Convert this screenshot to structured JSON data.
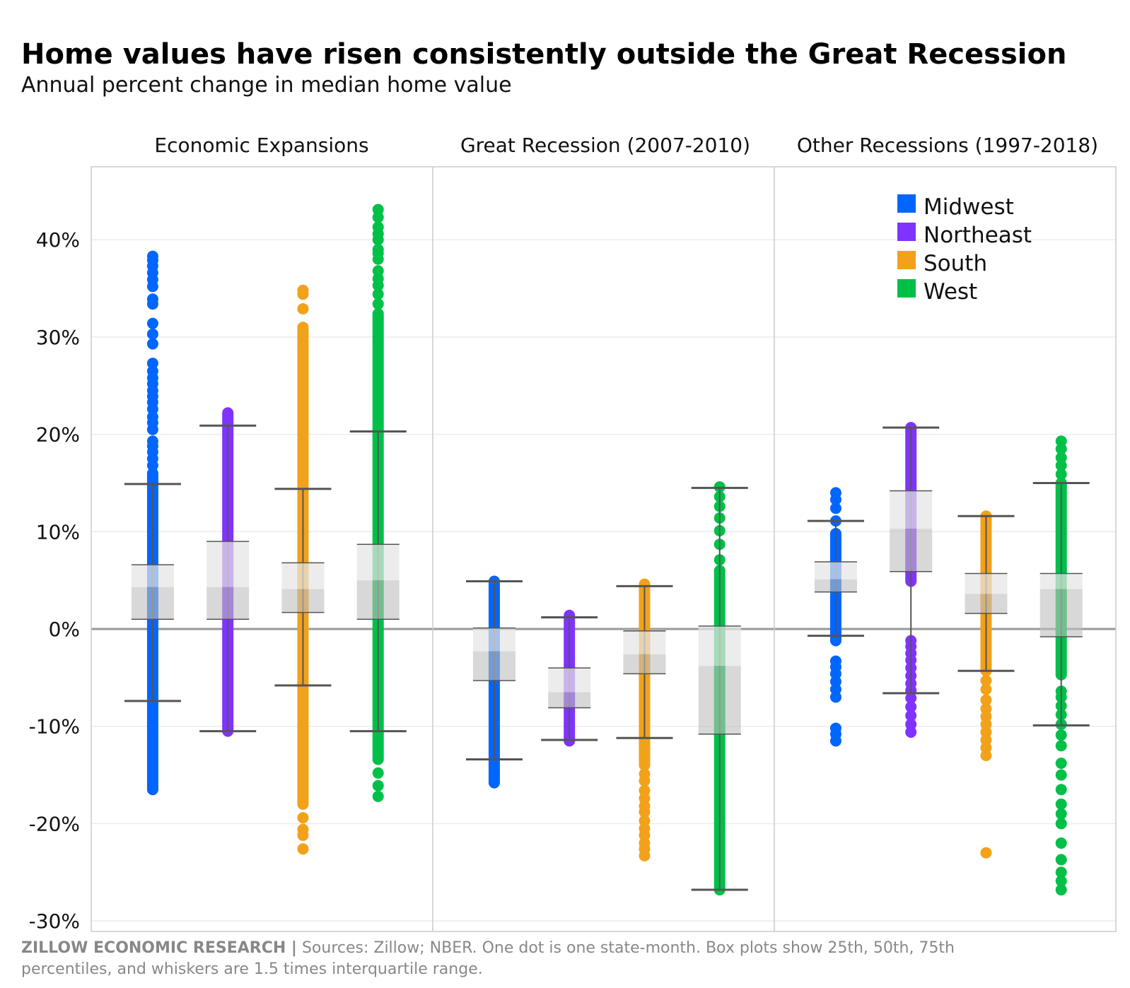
{
  "chart_data": {
    "type": "box-strip",
    "title": "Home values have risen consistently outside the Great Recession",
    "subtitle": "Annual percent change in median home value",
    "ylim": [
      -31,
      48
    ],
    "yticks": [
      -30,
      -20,
      -10,
      0,
      10,
      20,
      30,
      40
    ],
    "ytick_labels": [
      "-30%",
      "-20%",
      "-10%",
      "0%",
      "10%",
      "20%",
      "30%",
      "40%"
    ],
    "grid": true,
    "legend_position": "top-right",
    "series": [
      {
        "name": "Midwest",
        "color": "#0066ff"
      },
      {
        "name": "Northeast",
        "color": "#8033ff"
      },
      {
        "name": "South",
        "color": "#f2a11a"
      },
      {
        "name": "West",
        "color": "#00c048"
      }
    ],
    "panels": [
      {
        "label": "Economic Expansions",
        "groups": [
          {
            "series": "Midwest",
            "q1": 1.0,
            "median": 4.3,
            "q3": 6.6,
            "whisker_low": -7.4,
            "whisker_high": 14.9,
            "dense_range": [
              -16.5,
              16.0
            ],
            "outliers": [
              16.8,
              17.5,
              18.2,
              18.8,
              19.3,
              20.5,
              21.2,
              21.8,
              22.6,
              23.3,
              23.9,
              24.5,
              25.2,
              25.8,
              26.5,
              27.3,
              29.3,
              30.3,
              31.4,
              33.4,
              33.9,
              35.2,
              35.9,
              36.6,
              37.3,
              37.9,
              38.3
            ]
          },
          {
            "series": "Northeast",
            "q1": 1.0,
            "median": 4.3,
            "q3": 9.0,
            "whisker_low": -10.5,
            "whisker_high": 20.9,
            "dense_range": [
              -10.5,
              22.2
            ],
            "outliers": []
          },
          {
            "series": "South",
            "q1": 1.7,
            "median": 4.1,
            "q3": 6.8,
            "whisker_low": -5.8,
            "whisker_high": 14.4,
            "dense_range": [
              -18.0,
              31.0
            ],
            "outliers": [
              -22.6,
              -21.2,
              -20.6,
              -19.4,
              32.9,
              34.4,
              34.8
            ]
          },
          {
            "series": "West",
            "q1": 1.0,
            "median": 5.0,
            "q3": 8.7,
            "whisker_low": -10.5,
            "whisker_high": 20.3,
            "dense_range": [
              -13.4,
              32.4
            ],
            "outliers": [
              -17.2,
              -16.1,
              -14.8,
              33.4,
              34.4,
              35.3,
              36.0,
              36.8,
              38.0,
              38.6,
              39.0,
              40.0,
              40.6,
              41.3,
              42.3,
              43.1
            ]
          }
        ]
      },
      {
        "label": "Great Recession (2007-2010)",
        "groups": [
          {
            "series": "Midwest",
            "q1": -5.3,
            "median": -2.3,
            "q3": 0.1,
            "whisker_low": -13.4,
            "whisker_high": 4.9,
            "dense_range": [
              -15.8,
              4.9
            ],
            "outliers": []
          },
          {
            "series": "Northeast",
            "q1": -8.1,
            "median": -6.5,
            "q3": -4.0,
            "whisker_low": -11.4,
            "whisker_high": 1.2,
            "dense_range": [
              -11.5,
              1.4
            ],
            "outliers": []
          },
          {
            "series": "South",
            "q1": -4.6,
            "median": -2.6,
            "q3": -0.2,
            "whisker_low": -11.2,
            "whisker_high": 4.4,
            "dense_range": [
              -14.0,
              4.6
            ],
            "outliers": [
              -23.3,
              -22.6,
              -22.0,
              -21.2,
              -20.5,
              -19.7,
              -18.8,
              -18.2,
              -17.4,
              -16.6,
              -15.6,
              -14.9
            ]
          },
          {
            "series": "West",
            "q1": -10.8,
            "median": -3.8,
            "q3": 0.3,
            "whisker_low": -26.8,
            "whisker_high": 14.5,
            "dense_range": [
              -26.8,
              6.0
            ],
            "outliers": [
              7.1,
              8.7,
              10.1,
              11.4,
              12.6,
              13.6,
              14.6
            ]
          }
        ]
      },
      {
        "label": "Other Recessions (1997-2018)",
        "groups": [
          {
            "series": "Midwest",
            "q1": 3.8,
            "median": 5.1,
            "q3": 6.9,
            "whisker_low": -0.7,
            "whisker_high": 11.1,
            "dense_range": [
              -1.2,
              9.8
            ],
            "outliers": [
              -11.5,
              -10.8,
              -10.2,
              -7.0,
              -6.2,
              -5.4,
              -4.6,
              -3.9,
              -3.3,
              11.1,
              12.4,
              13.3,
              14.0
            ]
          },
          {
            "series": "Northeast",
            "q1": 5.9,
            "median": 10.3,
            "q3": 14.2,
            "whisker_low": -6.6,
            "whisker_high": 20.7,
            "dense_range": [
              4.9,
              20.7
            ],
            "outliers": [
              -10.6,
              -9.8,
              -8.9,
              -8.0,
              -7.1,
              -6.3,
              -5.6,
              -4.8,
              -4.0,
              -3.2,
              -2.5,
              -1.8,
              -1.2
            ]
          },
          {
            "series": "South",
            "q1": 1.6,
            "median": 3.6,
            "q3": 5.7,
            "whisker_low": -4.3,
            "whisker_high": 11.6,
            "dense_range": [
              -4.3,
              11.6
            ],
            "outliers": [
              -23.0,
              -13.0,
              -12.2,
              -11.4,
              -10.6,
              -9.8,
              -9.0,
              -8.2,
              -7.3,
              -6.2,
              -5.3
            ]
          },
          {
            "series": "West",
            "q1": -0.8,
            "median": 4.1,
            "q3": 5.7,
            "whisker_low": -9.9,
            "whisker_high": 15.0,
            "dense_range": [
              -4.7,
              15.0
            ],
            "outliers": [
              -26.8,
              -25.9,
              -25.0,
              -23.7,
              -22.0,
              -20.0,
              -19.0,
              -18.0,
              -16.5,
              -15.0,
              -13.8,
              -12.0,
              -10.9,
              -9.8,
              -8.8,
              -7.9,
              -7.0,
              -6.4,
              15.9,
              16.8,
              17.6,
              18.5,
              19.3
            ]
          }
        ]
      }
    ]
  },
  "footer": {
    "brand": "ZILLOW ECONOMIC RESEARCH |",
    "line1": " Sources: Zillow; NBER. One dot is one state-month. Box plots show 25th, 50th, 75th",
    "line2": "percentiles, and whiskers are 1.5 times interquartile range."
  }
}
